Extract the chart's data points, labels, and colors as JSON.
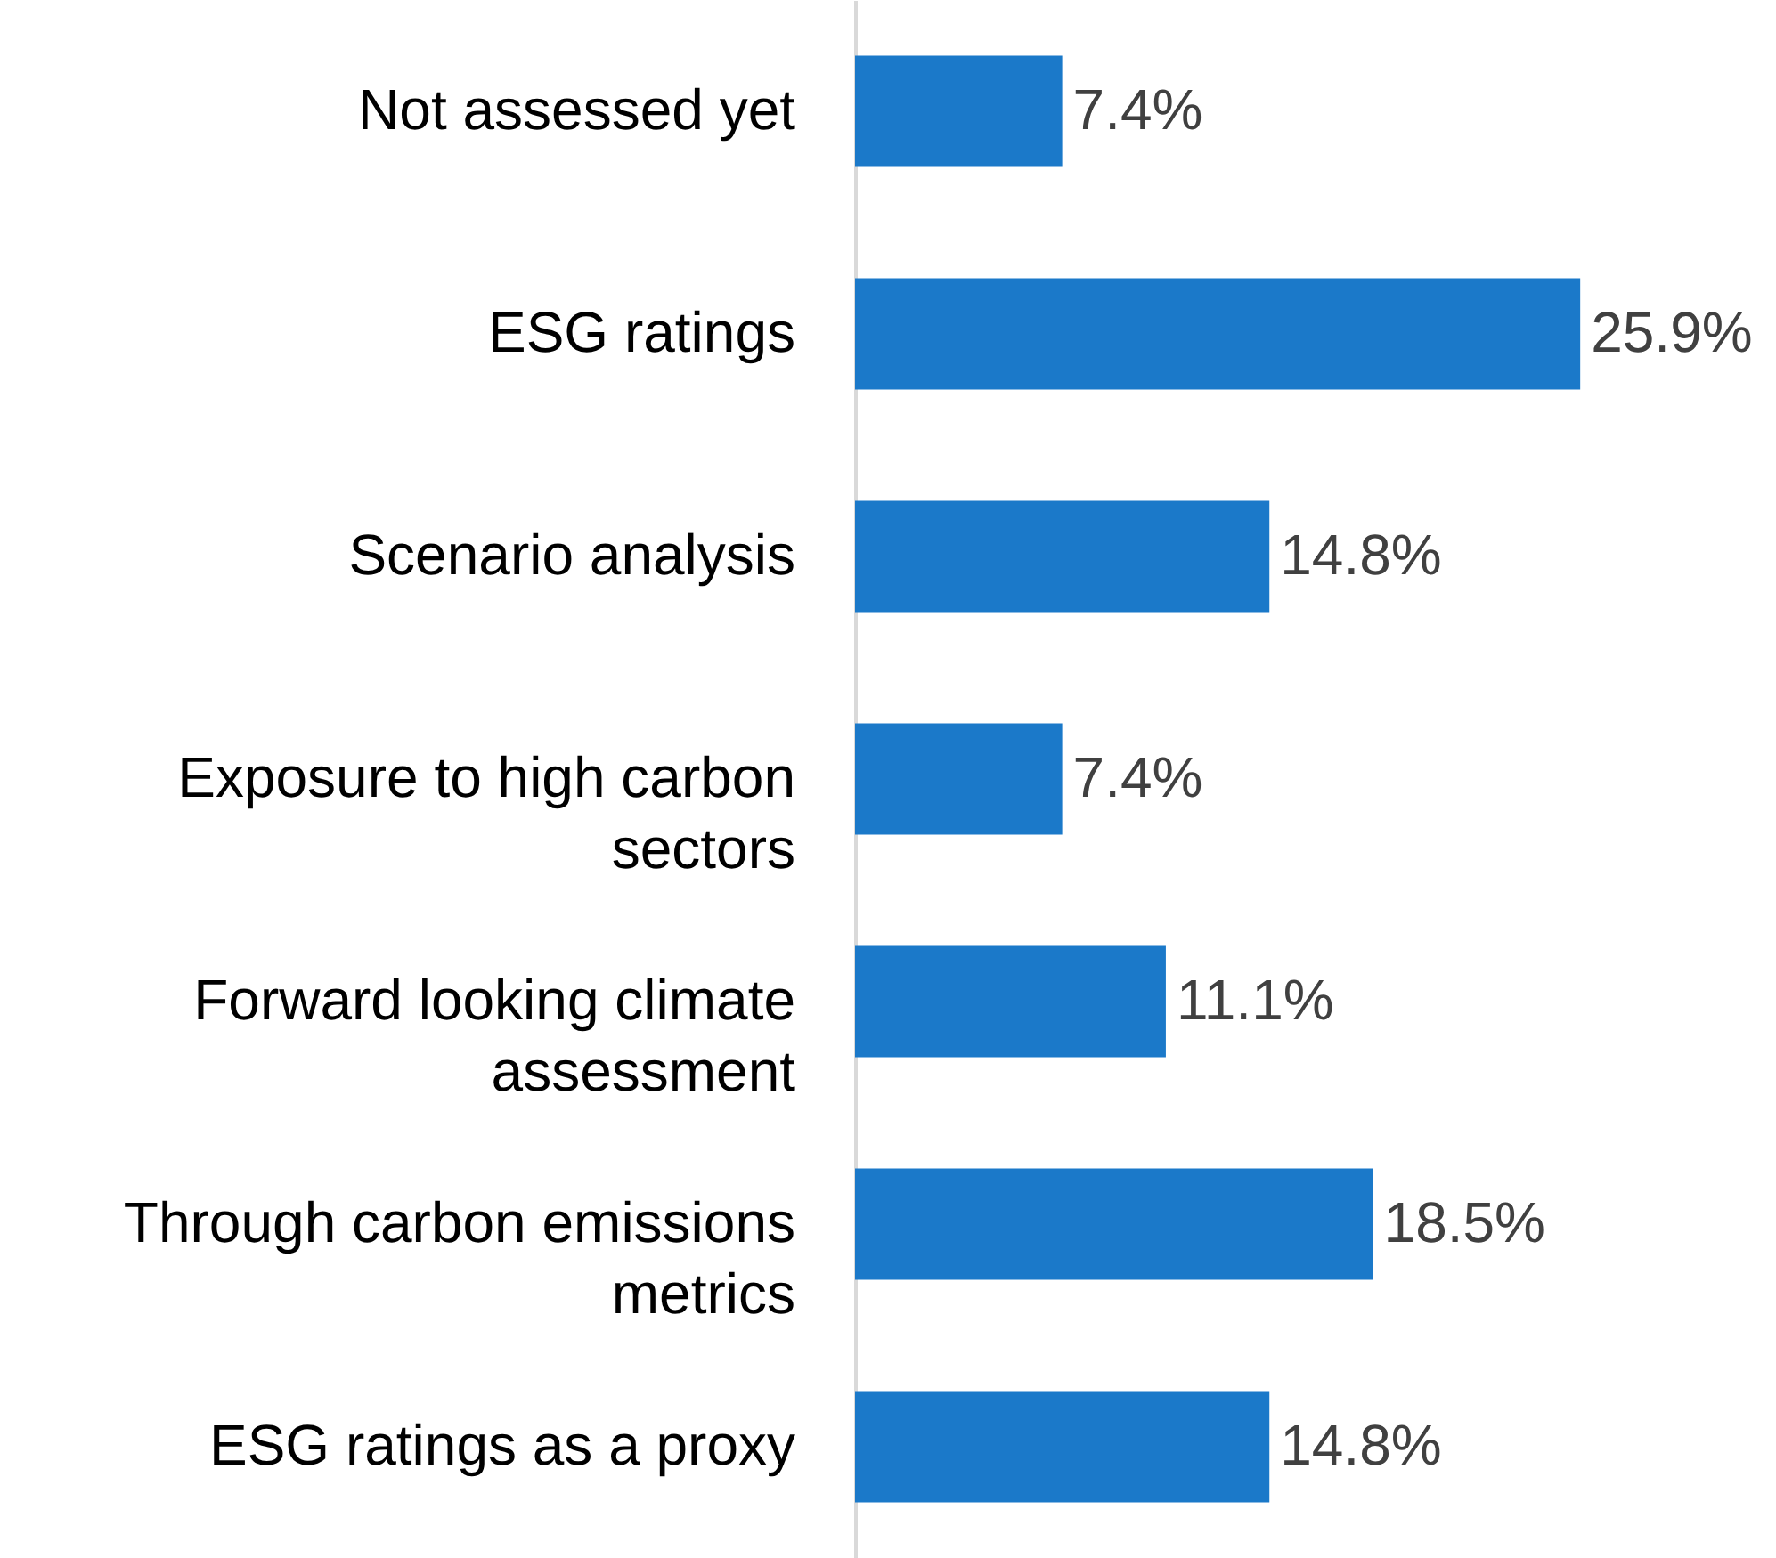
{
  "chart_data": {
    "type": "bar",
    "orientation": "horizontal",
    "categories": [
      "Not assessed yet",
      "ESG ratings",
      "Scenario analysis",
      "Exposure to high carbon sectors",
      "Forward looking climate assessment",
      "Through carbon emissions metrics",
      "ESG ratings as a proxy"
    ],
    "values": [
      7.4,
      25.9,
      14.8,
      7.4,
      11.1,
      18.5,
      14.8
    ],
    "value_labels": [
      "7.4%",
      "25.9%",
      "14.8%",
      "7.4%",
      "11.1%",
      "18.5%",
      "14.8%"
    ],
    "color": "#1b79c9"
  }
}
